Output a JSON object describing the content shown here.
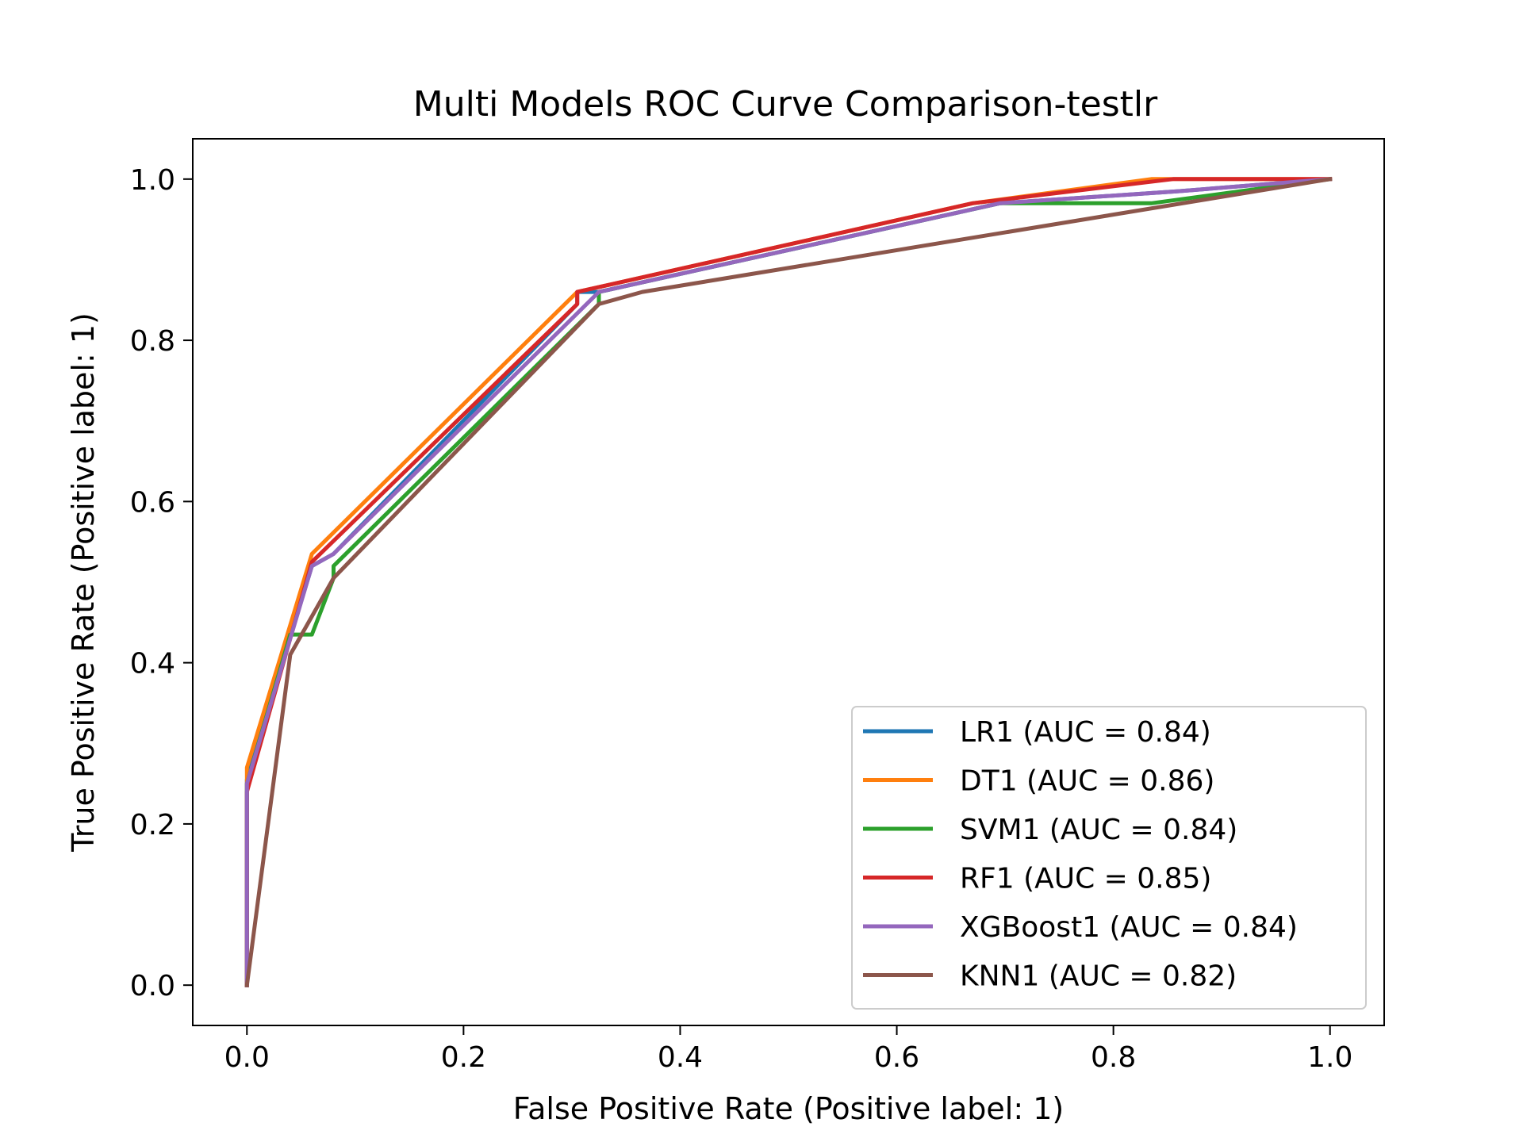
{
  "chart_data": {
    "type": "line",
    "title": "Multi Models ROC Curve Comparison-testlr",
    "xlabel": "False Positive Rate (Positive label: 1)",
    "ylabel": "True Positive Rate (Positive label: 1)",
    "xlim": [
      -0.05,
      1.05
    ],
    "ylim": [
      -0.05,
      1.05
    ],
    "xticks": [
      0.0,
      0.2,
      0.4,
      0.6,
      0.8,
      1.0
    ],
    "yticks": [
      0.0,
      0.2,
      0.4,
      0.6,
      0.8,
      1.0
    ],
    "xtick_labels": [
      "0.0",
      "0.2",
      "0.4",
      "0.6",
      "0.8",
      "1.0"
    ],
    "ytick_labels": [
      "0.0",
      "0.2",
      "0.4",
      "0.6",
      "0.8",
      "1.0"
    ],
    "grid": false,
    "legend_position": "lower-right",
    "series": [
      {
        "name": "LR1 (AUC = 0.84)",
        "color": "#1f77b4",
        "x": [
          0.0,
          0.0,
          0.06,
          0.08,
          0.305,
          0.305,
          0.325,
          0.695,
          0.86,
          1.0
        ],
        "y": [
          0.0,
          0.255,
          0.52,
          0.535,
          0.845,
          0.86,
          0.86,
          0.97,
          0.985,
          1.0
        ]
      },
      {
        "name": "DT1 (AUC = 0.86)",
        "color": "#ff7f0e",
        "x": [
          0.0,
          0.0,
          0.06,
          0.305,
          0.67,
          0.835,
          1.0
        ],
        "y": [
          0.0,
          0.27,
          0.535,
          0.86,
          0.97,
          1.0,
          1.0
        ]
      },
      {
        "name": "SVM1 (AUC = 0.84)",
        "color": "#2ca02c",
        "x": [
          0.0,
          0.0,
          0.04,
          0.06,
          0.08,
          0.08,
          0.325,
          0.325,
          0.695,
          0.835,
          1.0
        ],
        "y": [
          0.0,
          0.25,
          0.435,
          0.435,
          0.505,
          0.52,
          0.845,
          0.86,
          0.97,
          0.97,
          1.0
        ]
      },
      {
        "name": "RF1 (AUC = 0.85)",
        "color": "#d62728",
        "x": [
          0.0,
          0.0,
          0.06,
          0.305,
          0.305,
          0.67,
          0.855,
          1.0
        ],
        "y": [
          0.0,
          0.24,
          0.525,
          0.845,
          0.86,
          0.97,
          1.0,
          1.0
        ]
      },
      {
        "name": "XGBoost1 (AUC = 0.84)",
        "color": "#9467bd",
        "x": [
          0.0,
          0.0,
          0.06,
          0.08,
          0.325,
          0.695,
          0.86,
          1.0
        ],
        "y": [
          0.0,
          0.25,
          0.52,
          0.535,
          0.86,
          0.97,
          0.985,
          1.0
        ]
      },
      {
        "name": "KNN1 (AUC = 0.82)",
        "color": "#8c564b",
        "x": [
          0.0,
          0.04,
          0.08,
          0.325,
          0.365,
          1.0
        ],
        "y": [
          0.0,
          0.41,
          0.505,
          0.845,
          0.86,
          1.0
        ]
      }
    ]
  }
}
